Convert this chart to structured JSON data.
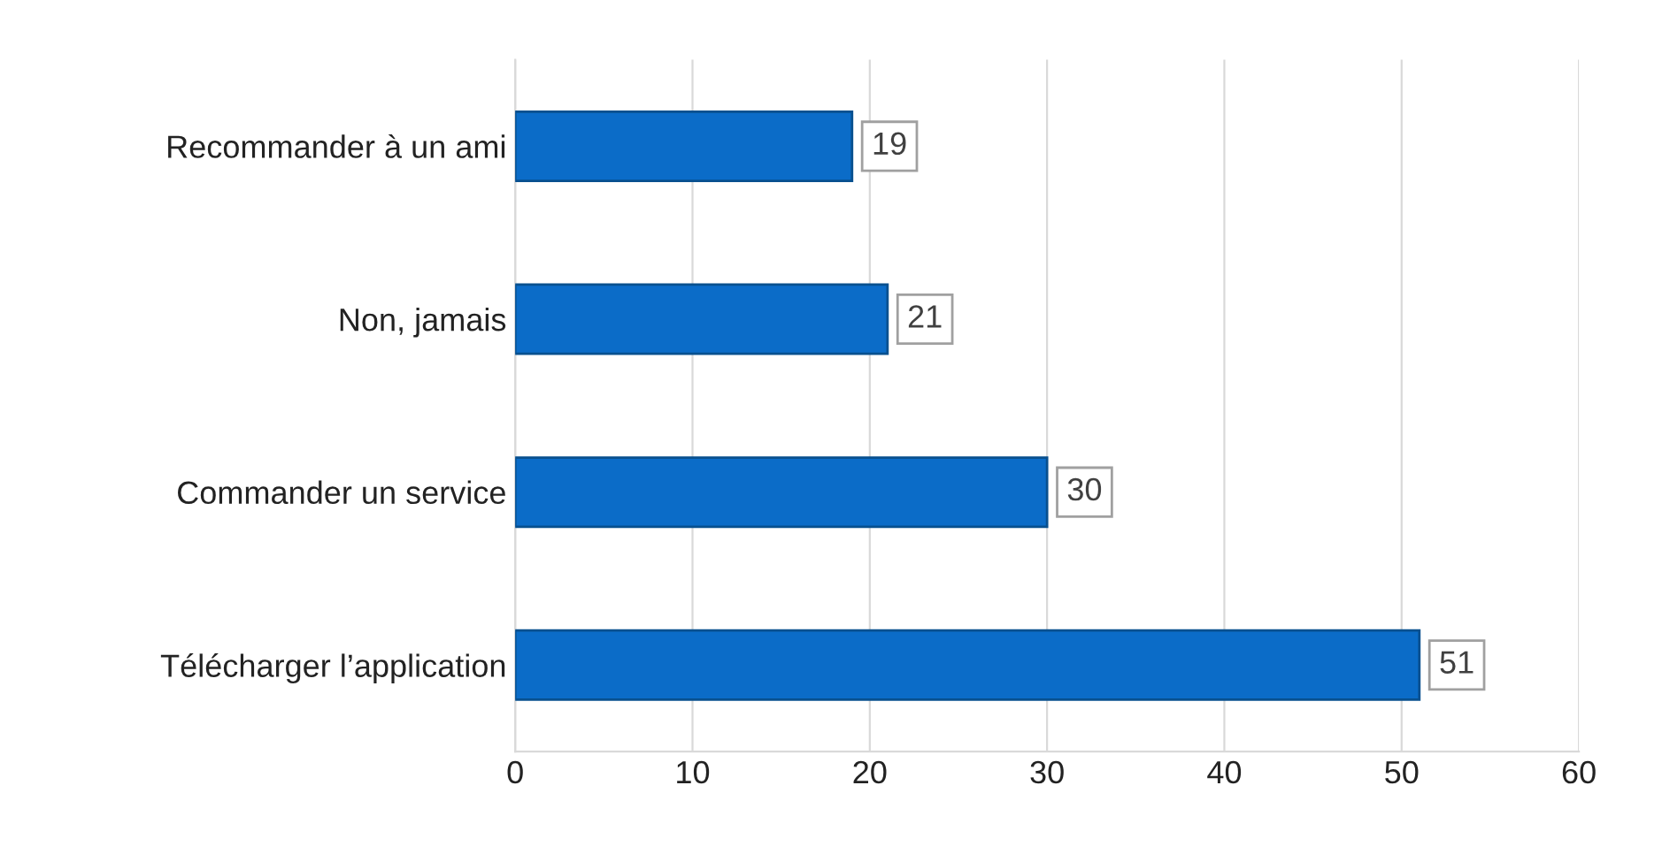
{
  "chart_data": {
    "type": "bar",
    "orientation": "horizontal",
    "categories": [
      "Recommander à un ami",
      "Non, jamais",
      "Commander un service",
      "Télécharger l’application"
    ],
    "values": [
      19,
      21,
      30,
      51
    ],
    "color": "#0b6cc8",
    "xlim": [
      0,
      60
    ],
    "xticks": [
      0,
      10,
      20,
      30,
      40,
      50,
      60
    ],
    "grid": "x",
    "data_labels": true
  }
}
